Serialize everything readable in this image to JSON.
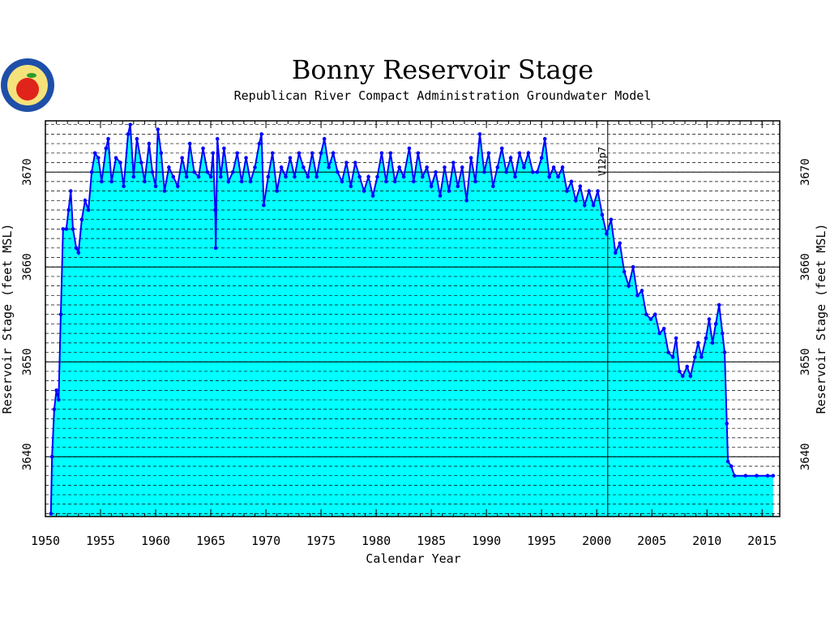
{
  "chart_data": {
    "type": "area",
    "title": "Bonny Reservoir Stage",
    "subtitle": "Republican River Compact Administration Groundwater Model",
    "x_label": "Calendar Year",
    "y_label": "Reservoir Stage (feet MSL)",
    "xlim": [
      1950,
      2016.6
    ],
    "ylim": [
      3633.7,
      3675.4
    ],
    "xticks": [
      1950,
      1955,
      1960,
      1965,
      1970,
      1975,
      1980,
      1985,
      1990,
      1995,
      2000,
      2005,
      2010,
      2015
    ],
    "yticks": [
      3640,
      3650,
      3660,
      3670
    ],
    "minor_grid_step": 1,
    "grid": true,
    "annotations": [
      {
        "x": 2001,
        "label": "V12p7"
      }
    ],
    "series": [
      {
        "color": "#0000ff",
        "fill": "#00ffff",
        "x": [
          1950.5,
          1950.6,
          1950.8,
          1951.0,
          1951.2,
          1951.4,
          1951.6,
          1951.9,
          1952.1,
          1952.3,
          1952.5,
          1952.8,
          1953.0,
          1953.3,
          1953.6,
          1953.9,
          1954.2,
          1954.5,
          1954.8,
          1955.1,
          1955.5,
          1955.7,
          1956.0,
          1956.4,
          1956.8,
          1957.1,
          1957.5,
          1957.7,
          1958.0,
          1958.3,
          1958.7,
          1959.0,
          1959.4,
          1959.7,
          1960.0,
          1960.2,
          1960.5,
          1960.8,
          1961.2,
          1961.6,
          1962.0,
          1962.4,
          1962.8,
          1963.1,
          1963.5,
          1963.9,
          1964.3,
          1964.7,
          1965.0,
          1965.2,
          1965.4,
          1965.45,
          1965.6,
          1965.9,
          1966.2,
          1966.6,
          1967.0,
          1967.4,
          1967.8,
          1968.2,
          1968.6,
          1969.0,
          1969.4,
          1969.6,
          1969.8,
          1970.2,
          1970.6,
          1971.0,
          1971.4,
          1971.8,
          1972.2,
          1972.6,
          1973.0,
          1973.4,
          1973.8,
          1974.2,
          1974.6,
          1975.0,
          1975.3,
          1975.7,
          1976.1,
          1976.5,
          1976.9,
          1977.3,
          1977.7,
          1978.1,
          1978.5,
          1978.9,
          1979.3,
          1979.7,
          1980.1,
          1980.5,
          1980.9,
          1981.3,
          1981.7,
          1982.1,
          1982.5,
          1983.0,
          1983.4,
          1983.8,
          1984.2,
          1984.6,
          1985.0,
          1985.4,
          1985.8,
          1986.2,
          1986.6,
          1987.0,
          1987.4,
          1987.8,
          1988.2,
          1988.6,
          1989.0,
          1989.4,
          1989.8,
          1990.2,
          1990.6,
          1991.0,
          1991.4,
          1991.8,
          1992.2,
          1992.6,
          1993.0,
          1993.4,
          1993.8,
          1994.2,
          1994.6,
          1995.0,
          1995.3,
          1995.7,
          1996.1,
          1996.5,
          1996.9,
          1997.3,
          1997.7,
          1998.1,
          1998.5,
          1998.9,
          1999.3,
          1999.7,
          2000.1,
          2000.5,
          2000.9,
          2001.3,
          2001.7,
          2002.1,
          2002.5,
          2002.9,
          2003.3,
          2003.7,
          2004.1,
          2004.5,
          2004.9,
          2005.3,
          2005.7,
          2006.1,
          2006.5,
          2006.9,
          2007.2,
          2007.5,
          2007.8,
          2008.2,
          2008.5,
          2008.9,
          2009.2,
          2009.5,
          2009.9,
          2010.2,
          2010.5,
          2010.8,
          2011.1,
          2011.4,
          2011.6,
          2011.8,
          2011.9,
          2012.2,
          2012.5,
          2013.5,
          2014.5,
          2015.5,
          2016.0
        ],
        "values": [
          3634,
          3640,
          3645,
          3647,
          3646,
          3655,
          3664,
          3664,
          3666,
          3668,
          3664,
          3662,
          3661.5,
          3665,
          3667,
          3666,
          3670,
          3672,
          3671.5,
          3669,
          3672.5,
          3673.5,
          3669,
          3671.5,
          3671,
          3668.5,
          3674,
          3675,
          3669.5,
          3673.5,
          3671,
          3669,
          3673,
          3670,
          3668.5,
          3674.5,
          3672,
          3668,
          3670.5,
          3669.5,
          3668.5,
          3671.5,
          3669.5,
          3673,
          3670,
          3669.5,
          3672.5,
          3670,
          3669.5,
          3672,
          3666,
          3662,
          3673.5,
          3669.5,
          3672.5,
          3669,
          3670,
          3672,
          3669,
          3671.5,
          3669,
          3670.5,
          3673,
          3674,
          3666.5,
          3669.5,
          3672,
          3668,
          3670.5,
          3669.5,
          3671.5,
          3669.5,
          3672,
          3670.5,
          3669.5,
          3672,
          3669.5,
          3672,
          3673.5,
          3670.5,
          3672,
          3670,
          3669,
          3671,
          3668.5,
          3671,
          3669.5,
          3668,
          3669.5,
          3667.5,
          3669.5,
          3672,
          3669,
          3672,
          3669,
          3670.5,
          3669.5,
          3672.5,
          3669,
          3672,
          3669.5,
          3670.5,
          3668.5,
          3670,
          3667.5,
          3670.5,
          3668,
          3671,
          3668.5,
          3670.5,
          3667,
          3671.5,
          3669,
          3674,
          3670,
          3672,
          3668.5,
          3670.5,
          3672.5,
          3670,
          3671.5,
          3669.5,
          3672,
          3670.5,
          3672,
          3670,
          3670,
          3671.5,
          3673.5,
          3669.5,
          3670.5,
          3669.5,
          3670.5,
          3668,
          3669,
          3667,
          3668.5,
          3666.5,
          3668,
          3666.5,
          3668,
          3665.5,
          3663.5,
          3665,
          3661.5,
          3662.5,
          3659.5,
          3658,
          3660,
          3657,
          3657.5,
          3655,
          3654.5,
          3655,
          3653,
          3653.5,
          3651,
          3650.5,
          3652.5,
          3649,
          3648.5,
          3649.5,
          3648.5,
          3650.5,
          3652,
          3650.5,
          3652.5,
          3654.5,
          3652,
          3654,
          3656,
          3653,
          3651,
          3643.5,
          3639.5,
          3639,
          3638,
          3638,
          3638,
          3638,
          3638
        ]
      }
    ]
  }
}
